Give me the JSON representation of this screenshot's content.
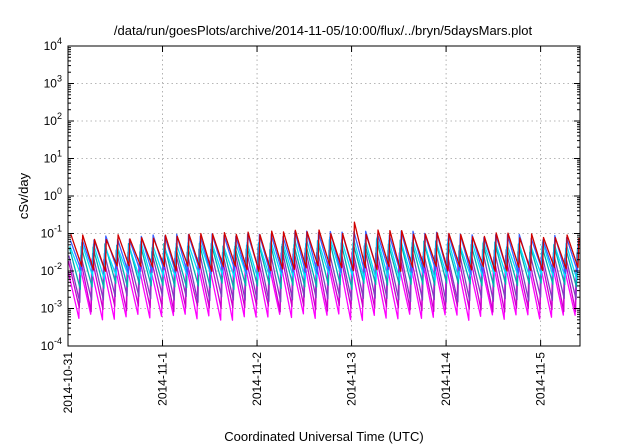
{
  "chart_data": {
    "type": "line",
    "title": "/data/run/goesPlots/archive/2014-11-05/10:00/flux/../bryn/5daysMars.plot",
    "xlabel": "Coordinated Universal Time (UTC)",
    "ylabel": "cSv/day",
    "yscale": "log",
    "ylim": [
      0.0001,
      10000
    ],
    "y_ticks": [
      {
        "base": "10",
        "exp": "-4",
        "value": 0.0001
      },
      {
        "base": "10",
        "exp": "-3",
        "value": 0.001
      },
      {
        "base": "10",
        "exp": "-2",
        "value": 0.01
      },
      {
        "base": "10",
        "exp": "-1",
        "value": 0.1
      },
      {
        "base": "10",
        "exp": "0",
        "value": 1
      },
      {
        "base": "10",
        "exp": "1",
        "value": 10
      },
      {
        "base": "10",
        "exp": "2",
        "value": 100
      },
      {
        "base": "10",
        "exp": "3",
        "value": 1000
      },
      {
        "base": "10",
        "exp": "4",
        "value": 10000
      }
    ],
    "xlim": [
      "2014-10-31T00:00",
      "2014-11-05T10:00"
    ],
    "x_ticks": [
      "2014-10-31",
      "2014-11-1",
      "2014-11-2",
      "2014-11-3",
      "2014-11-4",
      "2014-11-5"
    ],
    "grid": true,
    "legend": "none",
    "pattern": {
      "description_source": "sawtooth oscillation with period 3 hours",
      "period_hours": 3,
      "start": "2014-10-31T00:00",
      "end": "2014-11-05T10:00"
    },
    "series": [
      {
        "color": "#ff00ff",
        "peak": 0.012,
        "trough": 0.0006
      },
      {
        "color": "#cc00cc",
        "peak": 0.02,
        "trough": 0.001
      },
      {
        "color": "#7f3fbf",
        "peak": 0.03,
        "trough": 0.0018
      },
      {
        "color": "#00b0b0",
        "peak": 0.045,
        "trough": 0.004
      },
      {
        "color": "#00e0ff",
        "peak": 0.05,
        "trough": 0.007
      },
      {
        "color": "#3a5fff",
        "peak": 0.075,
        "trough": 0.01
      },
      {
        "color": "#d00000",
        "peak": 0.08,
        "trough": 0.012
      }
    ],
    "highlight_peak": {
      "x": "2014-11-03T00:00",
      "y": 0.2
    }
  },
  "colors": {
    "background": "#ffffff",
    "grid": "#a0a0a0",
    "frame": "#000000"
  }
}
